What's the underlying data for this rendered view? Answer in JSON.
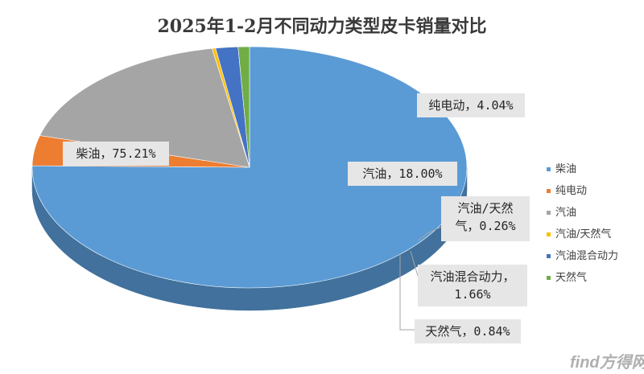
{
  "chart_data": {
    "type": "pie",
    "title": "2025年1-2月不同动力类型皮卡销量对比",
    "slices": [
      {
        "name": "柴油",
        "value": 75.21,
        "label_lines": [
          "柴油，75.21%"
        ],
        "color": "#5b9bd5",
        "side": "#41719c"
      },
      {
        "name": "纯电动",
        "value": 4.04,
        "label_lines": [
          "纯电动，4.04%"
        ],
        "color": "#ed7d31",
        "side": "#ae5a21"
      },
      {
        "name": "汽油",
        "value": 18.0,
        "label_lines": [
          "汽油，18.00%"
        ],
        "color": "#a5a5a5",
        "side": "#6e6e6e"
      },
      {
        "name": "汽油/天然气",
        "value": 0.26,
        "label_lines": [
          "汽油/天然",
          "气，0.26%"
        ],
        "color": "#ffc000",
        "side": "#b78a00"
      },
      {
        "name": "汽油混合动力",
        "value": 1.66,
        "label_lines": [
          "汽油混合动力，",
          "1.66%"
        ],
        "color": "#4472c4",
        "side": "#1f3864"
      },
      {
        "name": "天然气",
        "value": 0.84,
        "label_lines": [
          "天然气，0.84%"
        ],
        "color": "#70ad47",
        "side": "#375623"
      }
    ],
    "legend_position": "right"
  },
  "watermark": {
    "text": "find方得网"
  }
}
